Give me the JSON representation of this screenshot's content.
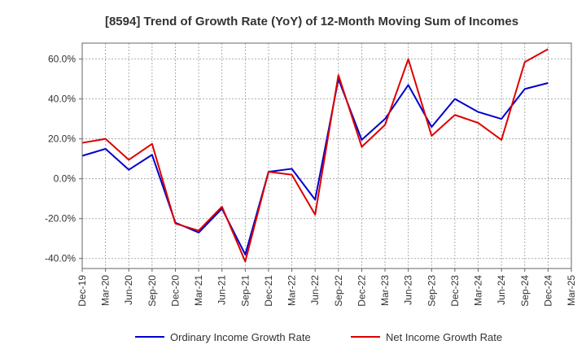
{
  "chart_data": {
    "type": "line",
    "title": "[8594]  Trend of Growth Rate (YoY) of 12-Month Moving Sum of Incomes",
    "xlabel": "",
    "ylabel": "",
    "x_ticks": [
      "Dec-19",
      "Mar-20",
      "Jun-20",
      "Sep-20",
      "Dec-20",
      "Mar-21",
      "Jun-21",
      "Sep-21",
      "Dec-21",
      "Mar-22",
      "Jun-22",
      "Sep-22",
      "Dec-22",
      "Mar-23",
      "Jun-23",
      "Sep-23",
      "Dec-23",
      "Mar-24",
      "Jun-24",
      "Sep-24",
      "Dec-24",
      "Mar-25"
    ],
    "y_ticks": [
      "-40.0%",
      "-20.0%",
      "0.0%",
      "20.0%",
      "40.0%",
      "60.0%"
    ],
    "y_tick_values": [
      -40,
      -20,
      0,
      20,
      40,
      60
    ],
    "ylim": [
      -45,
      68
    ],
    "grid": true,
    "legend_position": "bottom",
    "categories": [
      "Dec-19",
      "Mar-20",
      "Jun-20",
      "Sep-20",
      "Dec-20",
      "Mar-21",
      "Jun-21",
      "Sep-21",
      "Dec-21",
      "Mar-22",
      "Jun-22",
      "Sep-22",
      "Dec-22",
      "Mar-23",
      "Jun-23",
      "Sep-23",
      "Dec-23",
      "Mar-24",
      "Jun-24",
      "Sep-24",
      "Dec-24"
    ],
    "series": [
      {
        "name": "Ordinary Income Growth Rate",
        "color": "#0000cc",
        "values": [
          11.5,
          15.0,
          4.5,
          12.0,
          -22.0,
          -27.0,
          -15.0,
          -38.0,
          3.5,
          5.0,
          -10.5,
          50.0,
          19.5,
          30.0,
          47.0,
          26.0,
          40.0,
          33.5,
          30.0,
          45.0,
          48.0
        ]
      },
      {
        "name": "Net Income Growth Rate",
        "color": "#dd0000",
        "values": [
          18.0,
          20.0,
          9.5,
          17.5,
          -22.5,
          -26.0,
          -14.0,
          -41.5,
          3.5,
          2.0,
          -18.0,
          52.0,
          16.0,
          27.0,
          60.0,
          21.5,
          32.0,
          28.0,
          19.5,
          58.5,
          65.0
        ]
      }
    ]
  }
}
